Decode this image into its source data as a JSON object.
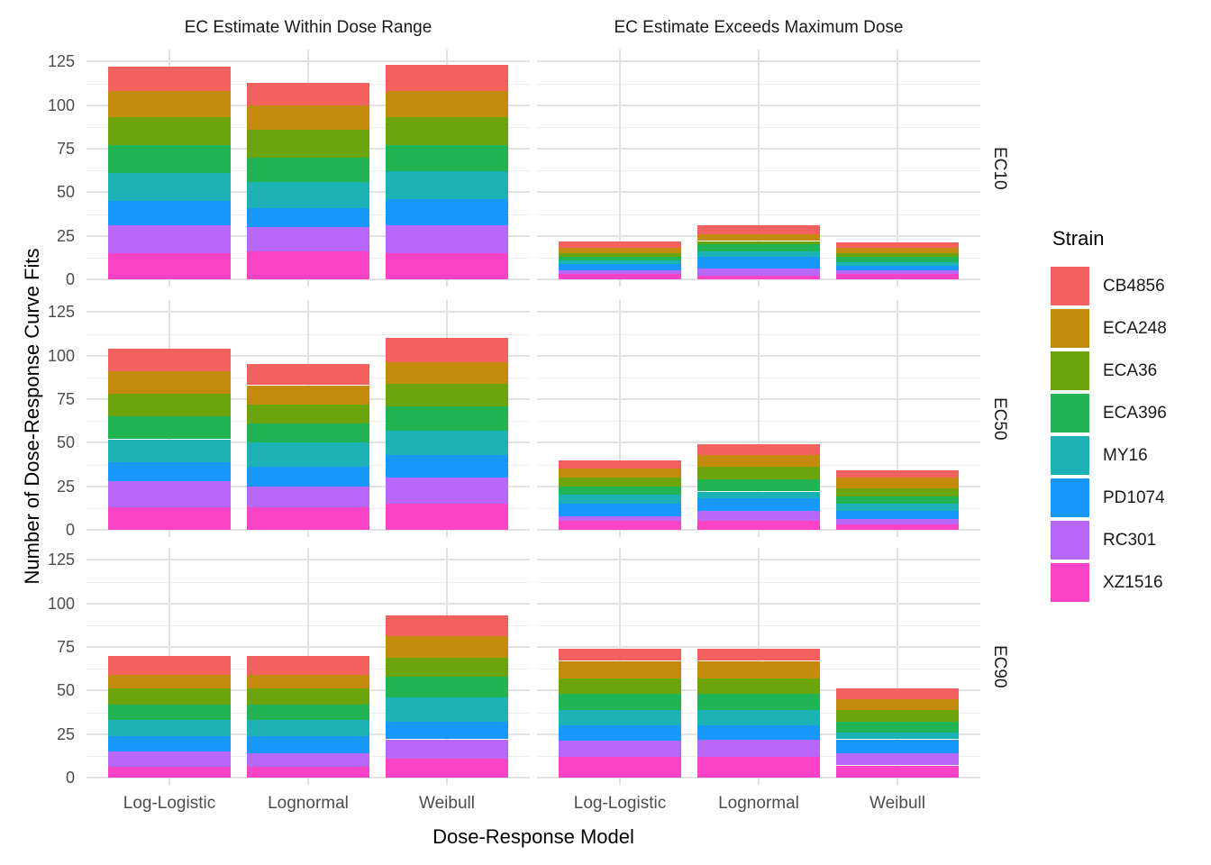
{
  "chart_data": {
    "type": "bar",
    "stacked": true,
    "xlabel": "Dose-Response Model",
    "ylabel": "Number of Dose-Response Curve Fits",
    "col_facets": [
      "EC Estimate Within Dose Range",
      "EC Estimate Exceeds Maximum Dose"
    ],
    "row_facets": [
      "EC10",
      "EC50",
      "EC90"
    ],
    "categories": [
      "Log-Logistic",
      "Lognormal",
      "Weibull"
    ],
    "y_ticks": [
      0,
      25,
      50,
      75,
      100,
      125
    ],
    "ylim": [
      0,
      132
    ],
    "grid": "major and minor horizontal, major vertical at category centers",
    "legend": {
      "title": "Strain",
      "position": "right"
    },
    "stacking": "first legend entry (CB4856) at top of stack, XZ1516 at bottom",
    "strains": [
      {
        "name": "CB4856",
        "color": "#F2615D"
      },
      {
        "name": "ECA248",
        "color": "#C48A0B"
      },
      {
        "name": "ECA36",
        "color": "#6CA50B"
      },
      {
        "name": "ECA396",
        "color": "#21B455"
      },
      {
        "name": "MY16",
        "color": "#1BB1B5"
      },
      {
        "name": "PD1074",
        "color": "#1898FA"
      },
      {
        "name": "RC301",
        "color": "#B867F9"
      },
      {
        "name": "XZ1516",
        "color": "#FA43C6"
      }
    ],
    "values_note": "arrays are counts per strain in legend order [CB4856, ECA248, ECA36, ECA396, MY16, PD1074, RC301, XZ1516]",
    "values": {
      "EC10": {
        "within": {
          "Log-Logistic": [
            14,
            15,
            16,
            16,
            16,
            14,
            16,
            15
          ],
          "Lognormal": [
            13,
            14,
            16,
            14,
            15,
            11,
            14,
            16
          ],
          "Weibull": [
            15,
            15,
            16,
            15,
            16,
            15,
            16,
            15
          ]
        },
        "exceeds": {
          "Log-Logistic": [
            4,
            3,
            2,
            2,
            2,
            4,
            2,
            3
          ],
          "Lognormal": [
            5,
            4,
            2,
            4,
            3,
            7,
            4,
            2
          ],
          "Weibull": [
            3,
            3,
            2,
            3,
            2,
            3,
            2,
            3
          ]
        }
      },
      "EC50": {
        "within": {
          "Log-Logistic": [
            13,
            13,
            13,
            13,
            13,
            11,
            15,
            13
          ],
          "Lognormal": [
            12,
            11,
            11,
            11,
            14,
            11,
            12,
            13
          ],
          "Weibull": [
            14,
            12,
            13,
            14,
            14,
            13,
            15,
            15
          ]
        },
        "exceeds": {
          "Log-Logistic": [
            5,
            5,
            5,
            5,
            5,
            7,
            3,
            5
          ],
          "Lognormal": [
            6,
            7,
            7,
            7,
            4,
            7,
            6,
            5
          ],
          "Weibull": [
            4,
            6,
            5,
            4,
            4,
            5,
            3,
            3
          ]
        }
      },
      "EC90": {
        "within": {
          "Log-Logistic": [
            11,
            8,
            9,
            9,
            9,
            9,
            9,
            6
          ],
          "Lognormal": [
            11,
            8,
            9,
            9,
            9,
            10,
            8,
            6
          ],
          "Weibull": [
            12,
            12,
            11,
            12,
            14,
            10,
            11,
            11
          ]
        },
        "exceeds": {
          "Log-Logistic": [
            7,
            10,
            9,
            9,
            9,
            9,
            9,
            12
          ],
          "Lognormal": [
            7,
            10,
            9,
            9,
            9,
            8,
            10,
            12
          ],
          "Weibull": [
            6,
            6,
            7,
            6,
            4,
            8,
            7,
            7
          ]
        }
      }
    }
  }
}
